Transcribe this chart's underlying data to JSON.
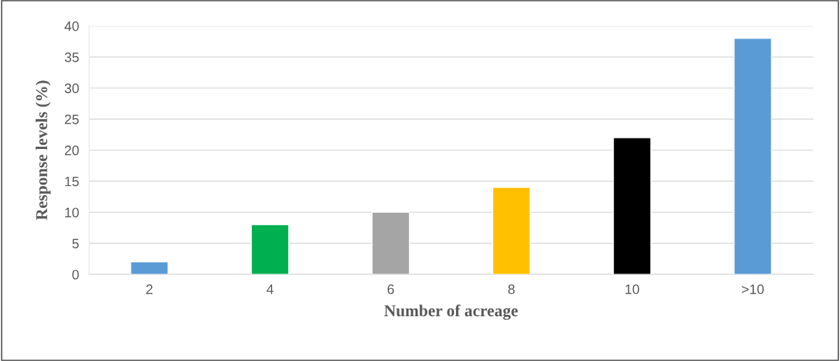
{
  "chart_data": {
    "type": "bar",
    "xlabel": "Number of acreage",
    "ylabel": "Response levels (%)",
    "categories": [
      "2",
      "4",
      "6",
      "8",
      "10",
      ">10"
    ],
    "values": [
      2,
      8,
      10,
      14,
      22,
      38
    ],
    "colors": [
      "#5b9bd5",
      "#00b050",
      "#a5a5a5",
      "#ffc000",
      "#000000",
      "#5b9bd5"
    ],
    "ylim": [
      0,
      40
    ],
    "yticks": [
      0,
      5,
      10,
      15,
      20,
      25,
      30,
      35,
      40
    ],
    "grid": "y"
  }
}
